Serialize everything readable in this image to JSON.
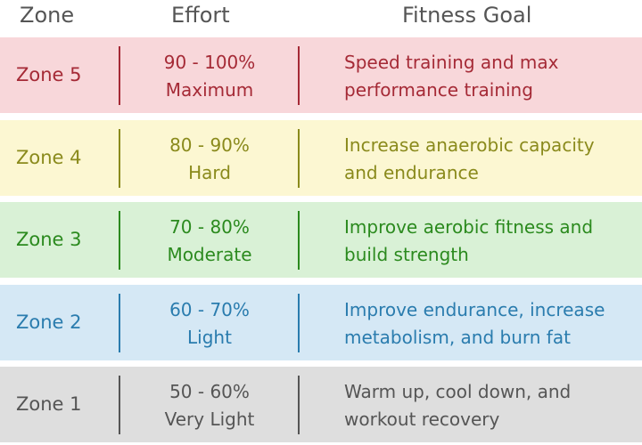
{
  "headers": {
    "zone": "Zone",
    "effort": "Effort",
    "goal": "Fitness Goal"
  },
  "rows": [
    {
      "zone": "Zone 5",
      "effort_range": "90 - 100%",
      "effort_label": "Maximum",
      "goal_line1": "Speed training and max",
      "goal_line2": "performance training",
      "bg_color": "#f8d7da",
      "text_color": "#a52a36"
    },
    {
      "zone": "Zone 4",
      "effort_range": "80 - 90%",
      "effort_label": "Hard",
      "goal_line1": "Increase anaerobic capacity",
      "goal_line2": "and endurance",
      "bg_color": "#fcf7d2",
      "text_color": "#8a8a1c"
    },
    {
      "zone": "Zone 3",
      "effort_range": "70 - 80%",
      "effort_label": "Moderate",
      "goal_line1": "Improve aerobic fitness and",
      "goal_line2": "build strength",
      "bg_color": "#d9f1d6",
      "text_color": "#2b8a1e"
    },
    {
      "zone": "Zone 2",
      "effort_range": "60 - 70%",
      "effort_label": "Light",
      "goal_line1": "Improve endurance, increase",
      "goal_line2": "metabolism, and burn fat",
      "bg_color": "#d5e8f5",
      "text_color": "#2a7cae"
    },
    {
      "zone": "Zone 1",
      "effort_range": "50 - 60%",
      "effort_label": "Very Light",
      "goal_line1": "Warm up, cool down, and",
      "goal_line2": "workout recovery",
      "bg_color": "#dedede",
      "text_color": "#555555"
    }
  ]
}
